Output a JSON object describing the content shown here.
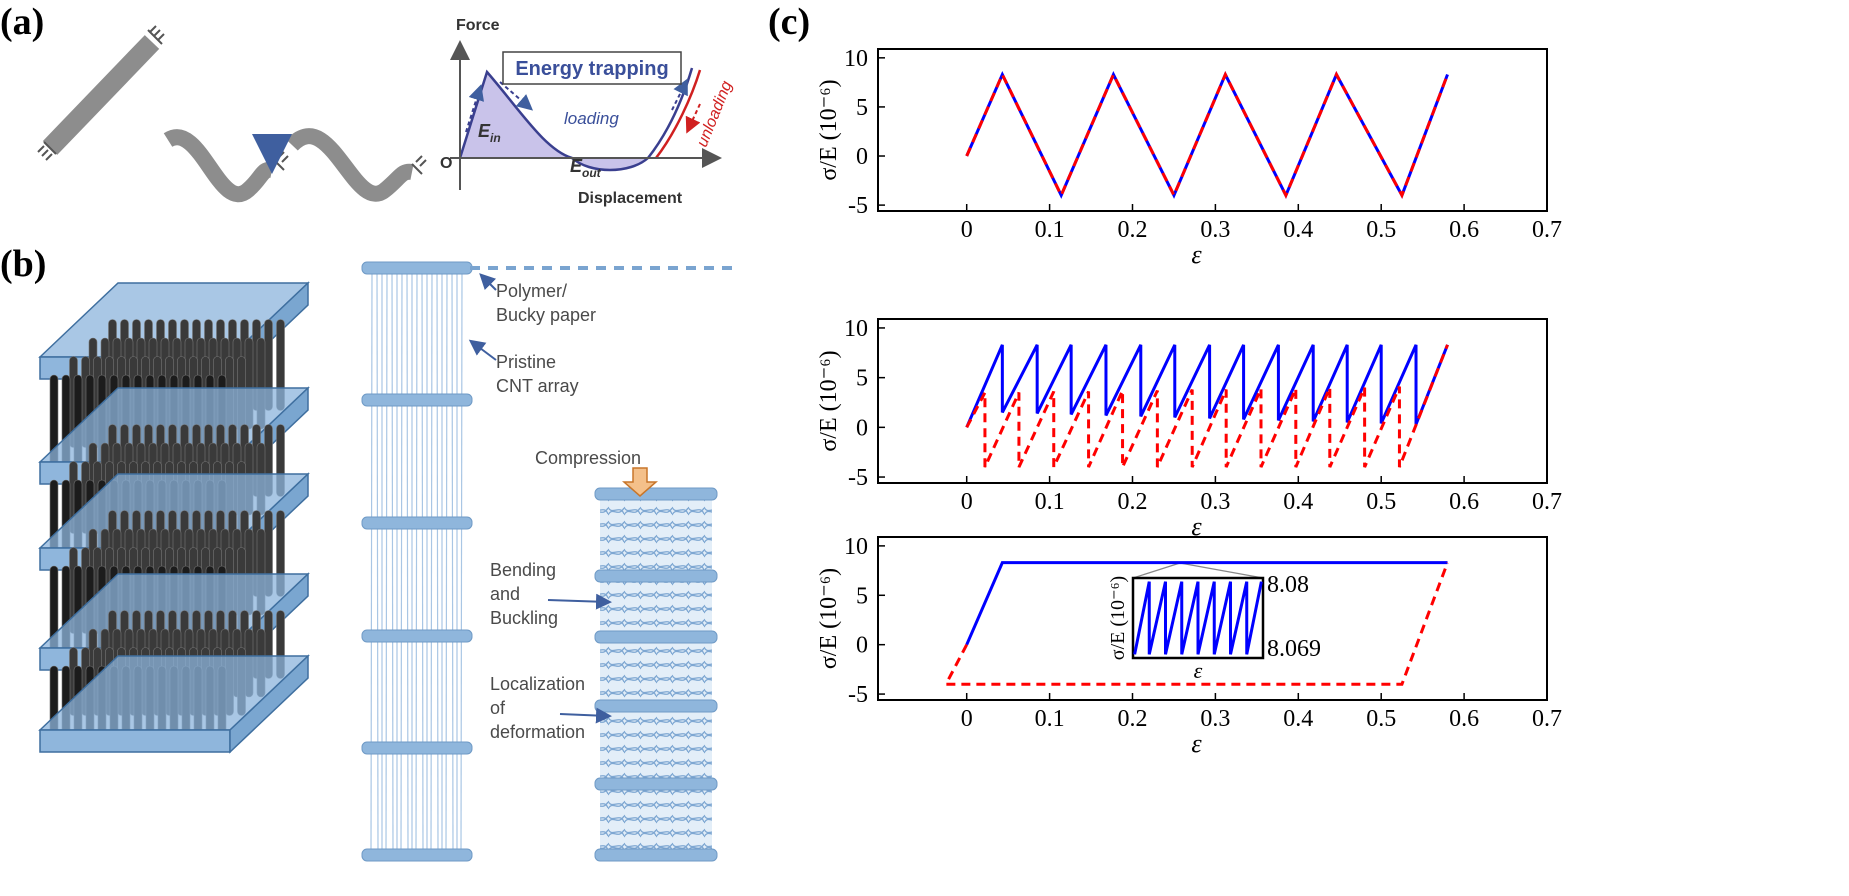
{
  "panel_a": {
    "label": "(a)",
    "y_axis_label": "Force",
    "origin_label": "O",
    "x_axis_label": "Displacement",
    "legend": "Energy trapping",
    "loading": "loading",
    "unloading": "unloading",
    "energy_in": {
      "symbol": "E",
      "subscript": "in"
    },
    "energy_out": {
      "symbol": "E",
      "subscript": "out"
    }
  },
  "panel_b": {
    "label": "(b)",
    "annotations": [
      {
        "lines": [
          "Polymer/",
          "Bucky paper"
        ]
      },
      {
        "lines": [
          "Pristine",
          "CNT array"
        ]
      },
      {
        "lines": [
          "Compression"
        ]
      },
      {
        "lines": [
          "Bending",
          "and",
          "Buckling"
        ]
      },
      {
        "lines": [
          "Localization",
          "of",
          "deformation"
        ]
      }
    ]
  },
  "panel_c": {
    "label": "(c)"
  },
  "chart_data": [
    {
      "type": "line",
      "xlabel": "ε",
      "ylabel": "σ/E (10⁻⁶)",
      "xlim": [
        -0.107,
        0.7
      ],
      "ylim": [
        -5.6,
        10.9
      ],
      "xticks": [
        0,
        0.1,
        0.2,
        0.3,
        0.4,
        0.5,
        0.6,
        0.7
      ],
      "yticks": [
        -5,
        0,
        5,
        10
      ],
      "series": [
        {
          "color": "#0000ff",
          "style": "solid",
          "x": [
            0,
            0.043,
            0.114,
            0.177,
            0.25,
            0.312,
            0.385,
            0.446,
            0.525,
            0.58
          ],
          "values": [
            0,
            8.3,
            -4,
            8.3,
            -4,
            8.3,
            -4,
            8.3,
            -4,
            8.3
          ]
        },
        {
          "color": "#ff0000",
          "style": "dashed",
          "x": [
            0,
            0.043,
            0.114,
            0.177,
            0.25,
            0.312,
            0.385,
            0.446,
            0.525,
            0.58
          ],
          "values": [
            0,
            8.3,
            -4,
            8.3,
            -4,
            8.3,
            -4,
            8.3,
            -4,
            8.3
          ]
        }
      ]
    },
    {
      "type": "line",
      "xlabel": "ε",
      "ylabel": "σ/E (10⁻⁶)",
      "xlim": [
        -0.107,
        0.7
      ],
      "ylim": [
        -5.6,
        10.9
      ],
      "xticks": [
        0,
        0.1,
        0.2,
        0.3,
        0.4,
        0.5,
        0.6,
        0.7
      ],
      "yticks": [
        -5,
        0,
        5,
        10
      ],
      "series": [
        {
          "color": "#0000ff",
          "style": "solid",
          "x": [
            0,
            0.043,
            0.043,
            0.085,
            0.085,
            0.126,
            0.126,
            0.168,
            0.168,
            0.21,
            0.21,
            0.251,
            0.251,
            0.293,
            0.293,
            0.334,
            0.334,
            0.376,
            0.376,
            0.418,
            0.418,
            0.459,
            0.459,
            0.5,
            0.5,
            0.542,
            0.542,
            0.58
          ],
          "values": [
            0,
            8.3,
            1.5,
            8.3,
            1.4,
            8.3,
            1.3,
            8.3,
            1.2,
            8.3,
            1.1,
            8.3,
            1.0,
            8.3,
            0.9,
            8.3,
            0.8,
            8.3,
            0.7,
            8.3,
            0.6,
            8.3,
            0.5,
            8.3,
            0.4,
            8.3,
            0.3,
            8.3
          ]
        },
        {
          "color": "#ff0000",
          "style": "dashed",
          "x": [
            0,
            0.022,
            0.022,
            0.063,
            0.063,
            0.105,
            0.105,
            0.147,
            0.147,
            0.188,
            0.188,
            0.23,
            0.23,
            0.272,
            0.272,
            0.313,
            0.313,
            0.355,
            0.355,
            0.397,
            0.397,
            0.438,
            0.438,
            0.48,
            0.48,
            0.522,
            0.522,
            0.58
          ],
          "values": [
            0,
            3.5,
            -4,
            3.5,
            -4,
            3.6,
            -4,
            3.6,
            -4,
            3.7,
            -4,
            3.7,
            -4,
            3.8,
            -4,
            3.8,
            -4,
            3.9,
            -4,
            3.9,
            -4,
            4.0,
            -4,
            4.0,
            -4,
            4.1,
            -4,
            8.3
          ]
        }
      ]
    },
    {
      "type": "line",
      "xlabel": "ε",
      "ylabel": "σ/E (10⁻⁶)",
      "xlim": [
        -0.107,
        0.7
      ],
      "ylim": [
        -5.6,
        10.9
      ],
      "xticks": [
        0,
        0.1,
        0.2,
        0.3,
        0.4,
        0.5,
        0.6,
        0.7
      ],
      "yticks": [
        -5,
        0,
        5,
        10
      ],
      "series": [
        {
          "color": "#0000ff",
          "style": "solid",
          "x": [
            0,
            0.043,
            0.58
          ],
          "values": [
            0,
            8.3,
            8.3
          ]
        },
        {
          "color": "#ff0000",
          "style": "dashed",
          "x": [
            0,
            -0.025,
            0.525,
            0.58
          ],
          "values": [
            0,
            -4,
            -4,
            8.3
          ]
        }
      ]
    },
    {
      "type": "line",
      "xlabel": "ε",
      "ylabel": "σ/E (10⁻⁶)",
      "xlim": [
        0,
        8
      ],
      "ylim": [
        8.069,
        8.08
      ],
      "yticks": [
        8.069,
        8.08
      ],
      "series": [
        {
          "color": "#0000ff",
          "style": "solid",
          "x": [
            0.1,
            1,
            1,
            2,
            2,
            3,
            3,
            4,
            4,
            5,
            5,
            6,
            6,
            7,
            7,
            7.9
          ],
          "values": [
            8.0695,
            8.0795,
            8.0695,
            8.0795,
            8.0695,
            8.0795,
            8.0695,
            8.0795,
            8.0695,
            8.0795,
            8.0695,
            8.0795,
            8.0695,
            8.0795,
            8.0695,
            8.0795
          ]
        }
      ]
    }
  ]
}
